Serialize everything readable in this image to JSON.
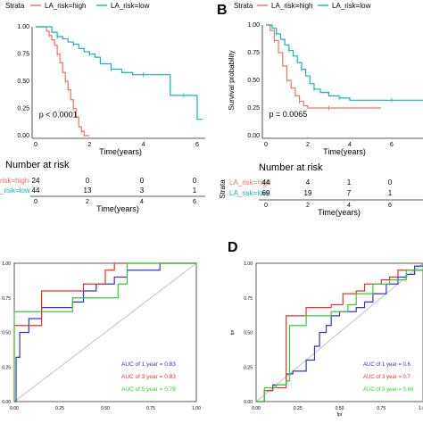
{
  "panels": {
    "a": {
      "letter": ""
    },
    "b": {
      "letter": "B"
    },
    "c": {
      "letter": ""
    },
    "d": {
      "letter": "D"
    }
  },
  "legend": {
    "title": "Strata",
    "high": "LA_risk=high",
    "low": "LA_risk=low"
  },
  "colors": {
    "high": "#f07167",
    "low": "#12b5b5",
    "blue": "#3333cc",
    "red": "#e8322b",
    "green": "#33cc33"
  },
  "risk_tables": {
    "title": "Number at risk",
    "strata_label": "Strata",
    "a": {
      "rows": [
        {
          "label": "risk=high",
          "values": [
            "24",
            "0",
            "0",
            "0"
          ]
        },
        {
          "label": "_risk=low",
          "values": [
            "44",
            "13",
            "3",
            "1"
          ]
        }
      ]
    },
    "b": {
      "rows": [
        {
          "label": "LA_risk=high",
          "values": [
            "44",
            "4",
            "1",
            "0"
          ]
        },
        {
          "label": "LA_risk=low",
          "values": [
            "69",
            "19",
            "7",
            "1"
          ]
        }
      ]
    }
  },
  "chart_data": [
    {
      "type": "line",
      "panel": "A",
      "xlabel": "Time(years)",
      "ylabel": "",
      "xlim": [
        0,
        6.3
      ],
      "ylim": [
        0,
        1
      ],
      "xticks": [
        "0",
        "2",
        "4",
        "6"
      ],
      "yticks": [
        "0.00",
        "0.25",
        "0.50",
        "0.75",
        "1.00"
      ],
      "pvalue": "p < 0.0001",
      "series": [
        {
          "name": "LA_risk=high",
          "x": [
            0,
            0.4,
            0.5,
            0.6,
            0.7,
            0.8,
            0.9,
            1.0,
            1.1,
            1.2,
            1.3,
            1.4,
            1.5,
            1.6,
            1.7,
            1.8,
            2.0
          ],
          "y": [
            1.0,
            0.96,
            0.92,
            0.88,
            0.83,
            0.75,
            0.67,
            0.58,
            0.5,
            0.42,
            0.33,
            0.25,
            0.17,
            0.08,
            0.04,
            0.0,
            0.0
          ]
        },
        {
          "name": "LA_risk=low",
          "x": [
            0,
            0.6,
            0.8,
            1.0,
            1.2,
            1.4,
            1.6,
            1.8,
            2.0,
            2.2,
            2.4,
            2.8,
            3.2,
            3.6,
            4.0,
            4.4,
            5.0,
            5.5,
            6.0,
            6.2
          ],
          "y": [
            1.0,
            0.95,
            0.91,
            0.89,
            0.86,
            0.84,
            0.8,
            0.77,
            0.75,
            0.72,
            0.66,
            0.61,
            0.58,
            0.56,
            0.56,
            0.56,
            0.37,
            0.37,
            0.15,
            0.15
          ]
        }
      ]
    },
    {
      "type": "line",
      "panel": "B",
      "xlabel": "Time(years)",
      "ylabel": "Survival probability",
      "xlim": [
        0,
        7.5
      ],
      "ylim": [
        0,
        1
      ],
      "xticks": [
        "0",
        "2",
        "4",
        "6"
      ],
      "yticks": [
        "0.00",
        "0.25",
        "0.50",
        "0.75",
        "1.00"
      ],
      "pvalue": "p = 0.0065",
      "series": [
        {
          "name": "LA_risk=high",
          "x": [
            0,
            0.2,
            0.4,
            0.6,
            0.8,
            1.0,
            1.2,
            1.4,
            1.6,
            1.8,
            2.0,
            3.0,
            4.0,
            5.5
          ],
          "y": [
            1.0,
            0.95,
            0.86,
            0.75,
            0.63,
            0.5,
            0.43,
            0.36,
            0.31,
            0.27,
            0.25,
            0.25,
            0.25,
            0.25
          ]
        },
        {
          "name": "LA_risk=low",
          "x": [
            0,
            0.3,
            0.5,
            0.7,
            0.9,
            1.1,
            1.3,
            1.5,
            1.7,
            1.9,
            2.1,
            2.3,
            2.6,
            3.0,
            3.5,
            4.0,
            5.0,
            6.0,
            7.5
          ],
          "y": [
            1.0,
            0.97,
            0.92,
            0.87,
            0.82,
            0.77,
            0.72,
            0.66,
            0.6,
            0.54,
            0.47,
            0.42,
            0.39,
            0.36,
            0.34,
            0.32,
            0.32,
            0.32,
            0.32
          ]
        }
      ]
    },
    {
      "type": "line",
      "panel": "C",
      "xlabel": "",
      "ylabel": "",
      "xlim": [
        0,
        1
      ],
      "ylim": [
        0,
        1
      ],
      "xticks": [
        "0.00",
        "0.25",
        "0.50",
        "0.75",
        "1.00"
      ],
      "yticks": [
        "0.00",
        "0.25",
        "0.50",
        "0.75",
        "1.00"
      ],
      "series": [
        {
          "name": "AUC of 1 year = 0.83",
          "color": "blue",
          "x": [
            0,
            0.01,
            0.01,
            0.03,
            0.03,
            0.06,
            0.08,
            0.08,
            0.12,
            0.15,
            0.15,
            0.25,
            0.32,
            0.35,
            0.38,
            0.42,
            0.45,
            0.48,
            0.5,
            0.55,
            0.62,
            0.68,
            0.72,
            0.8,
            0.85,
            1.0
          ],
          "y": [
            0,
            0.2,
            0.32,
            0.36,
            0.5,
            0.5,
            0.55,
            0.6,
            0.6,
            0.65,
            0.68,
            0.68,
            0.72,
            0.72,
            0.8,
            0.8,
            0.85,
            0.85,
            0.85,
            0.9,
            0.95,
            0.95,
            0.95,
            1.0,
            1.0,
            1.0
          ]
        },
        {
          "name": "AUC of 3 year = 0.83",
          "color": "red",
          "x": [
            0,
            0.0,
            0.03,
            0.15,
            0.15,
            0.35,
            0.38,
            0.48,
            0.5,
            0.52,
            0.55,
            0.7,
            0.75,
            0.85,
            1.0
          ],
          "y": [
            0,
            0.55,
            0.55,
            0.75,
            0.8,
            0.8,
            0.85,
            0.85,
            0.95,
            0.95,
            1.0,
            1.0,
            1.0,
            1.0,
            1.0
          ]
        },
        {
          "name": "AUC of 5 year = 0.78",
          "color": "green",
          "x": [
            0,
            0.0,
            0.05,
            0.3,
            0.32,
            0.55,
            0.57,
            0.6,
            0.62,
            0.85,
            1.0
          ],
          "y": [
            0,
            0.65,
            0.65,
            0.65,
            0.75,
            0.75,
            0.85,
            0.85,
            1.0,
            1.0,
            1.0
          ]
        }
      ],
      "diagonal": true
    },
    {
      "type": "line",
      "panel": "D",
      "xlabel": "fpr",
      "ylabel": "tpr",
      "xlim": [
        0,
        1
      ],
      "ylim": [
        0,
        1
      ],
      "xticks": [
        "0.00",
        "0.25",
        "0.50",
        "0.75",
        "1.00"
      ],
      "yticks": [
        "0.00",
        "0.25",
        "0.50",
        "0.75",
        "1.00"
      ],
      "series": [
        {
          "name": "AUC of 1 year = 0.6",
          "color": "blue",
          "x": [
            0,
            0.05,
            0.1,
            0.18,
            0.22,
            0.3,
            0.35,
            0.38,
            0.42,
            0.45,
            0.5,
            0.55,
            0.6,
            0.65,
            0.7,
            0.78,
            0.85,
            0.9,
            0.95,
            1.0
          ],
          "y": [
            0,
            0.08,
            0.12,
            0.2,
            0.22,
            0.3,
            0.4,
            0.5,
            0.55,
            0.62,
            0.65,
            0.65,
            0.68,
            0.72,
            0.78,
            0.85,
            0.9,
            0.92,
            0.98,
            1.0
          ]
        },
        {
          "name": "AUC of 3 year = 0.7",
          "color": "red",
          "x": [
            0,
            0.05,
            0.1,
            0.18,
            0.18,
            0.3,
            0.3,
            0.45,
            0.52,
            0.6,
            0.65,
            0.75,
            0.8,
            0.85,
            1.0
          ],
          "y": [
            0,
            0.08,
            0.1,
            0.2,
            0.62,
            0.62,
            0.68,
            0.7,
            0.78,
            0.8,
            0.85,
            0.88,
            0.9,
            0.95,
            1.0
          ]
        },
        {
          "name": "AUC of 5 year = 0.68",
          "color": "green",
          "x": [
            0,
            0.05,
            0.12,
            0.18,
            0.2,
            0.3,
            0.35,
            0.45,
            0.55,
            0.6,
            0.7,
            0.8,
            0.9,
            1.0
          ],
          "y": [
            0,
            0.1,
            0.12,
            0.15,
            0.55,
            0.62,
            0.62,
            0.65,
            0.7,
            0.78,
            0.85,
            0.88,
            0.95,
            1.0
          ]
        }
      ],
      "diagonal": true
    }
  ]
}
